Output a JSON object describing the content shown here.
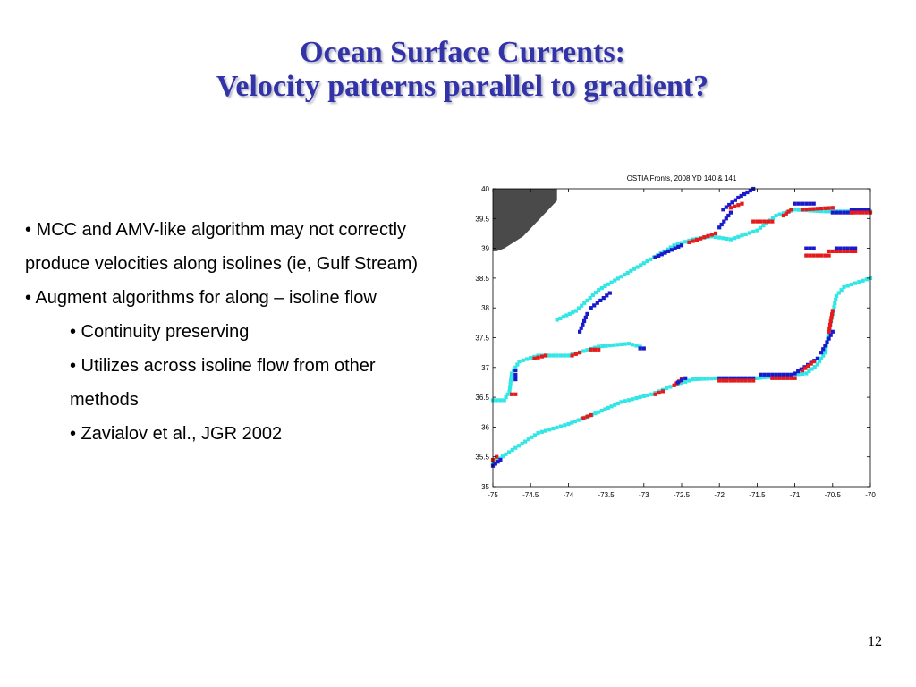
{
  "slide": {
    "title_line1": "Ocean Surface Currents:",
    "title_line2": "Velocity patterns parallel to gradient?",
    "bullets": [
      {
        "text": "• MCC and AMV-like algorithm may not correctly produce velocities along isolines (ie, Gulf Stream)",
        "level": 1
      },
      {
        "text": "• Augment algorithms for along – isoline flow",
        "level": 1
      },
      {
        "text": "• Continuity preserving",
        "level": 2
      },
      {
        "text": "• Utilizes across isoline flow from other methods",
        "level": 2
      },
      {
        "text": "• Zavialov et al., JGR 2002",
        "level": 2
      }
    ],
    "page_number": "12"
  },
  "colors": {
    "title": "#3333a8",
    "land": "#4a4a4a",
    "front_cyan": "#33e6e6",
    "front_blue": "#1a1acc",
    "front_red": "#e61a1a"
  },
  "chart_data": {
    "type": "scatter",
    "title": "OSTIA Fronts, 2008 YD 140 & 141",
    "xlabel": "",
    "ylabel": "",
    "xlim": [
      -75,
      -70
    ],
    "ylim": [
      35,
      40
    ],
    "x_ticks": [
      "-75",
      "-74.5",
      "-74",
      "-73.5",
      "-73",
      "-72.5",
      "-72",
      "-71.5",
      "-71",
      "-70.5",
      "-70"
    ],
    "y_ticks": [
      "35",
      "35.5",
      "36",
      "36.5",
      "37",
      "37.5",
      "38",
      "38.5",
      "39",
      "39.5",
      "40"
    ],
    "grid": false,
    "land_outline": [
      [
        -75,
        40
      ],
      [
        -74.15,
        40
      ],
      [
        -74.15,
        39.8
      ],
      [
        -74.3,
        39.6
      ],
      [
        -74.45,
        39.4
      ],
      [
        -74.6,
        39.2
      ],
      [
        -74.85,
        39
      ],
      [
        -74.95,
        38.95
      ],
      [
        -75,
        38.95
      ]
    ],
    "fronts": [
      {
        "color": "cyan",
        "points": [
          [
            -74.15,
            37.8
          ],
          [
            -73.9,
            37.95
          ],
          [
            -73.6,
            38.3
          ],
          [
            -73.0,
            38.75
          ],
          [
            -72.6,
            39.05
          ],
          [
            -72.35,
            39.15
          ],
          [
            -72.1,
            39.2
          ],
          [
            -71.85,
            39.15
          ],
          [
            -71.5,
            39.3
          ],
          [
            -71.25,
            39.55
          ],
          [
            -71.0,
            39.65
          ],
          [
            -70.6,
            39.62
          ],
          [
            -70.3,
            39.62
          ],
          [
            -70.0,
            39.62
          ]
        ]
      },
      {
        "color": "blue",
        "points": [
          [
            -73.85,
            37.6
          ],
          [
            -73.75,
            37.9
          ]
        ]
      },
      {
        "color": "blue",
        "points": [
          [
            -73.7,
            38.0
          ],
          [
            -73.45,
            38.25
          ]
        ]
      },
      {
        "color": "blue",
        "points": [
          [
            -72.85,
            38.85
          ],
          [
            -72.5,
            39.05
          ]
        ]
      },
      {
        "color": "red",
        "points": [
          [
            -72.4,
            39.1
          ],
          [
            -72.05,
            39.25
          ]
        ]
      },
      {
        "color": "blue",
        "points": [
          [
            -72.0,
            39.35
          ],
          [
            -71.85,
            39.6
          ]
        ]
      },
      {
        "color": "blue",
        "points": [
          [
            -71.95,
            39.65
          ],
          [
            -71.75,
            39.85
          ],
          [
            -71.55,
            40.0
          ]
        ]
      },
      {
        "color": "red",
        "points": [
          [
            -71.85,
            39.68
          ],
          [
            -71.7,
            39.75
          ]
        ]
      },
      {
        "color": "red",
        "points": [
          [
            -71.55,
            39.45
          ],
          [
            -71.3,
            39.45
          ]
        ]
      },
      {
        "color": "red",
        "points": [
          [
            -71.15,
            39.55
          ],
          [
            -71.05,
            39.65
          ]
        ]
      },
      {
        "color": "blue",
        "points": [
          [
            -71.0,
            39.75
          ],
          [
            -70.75,
            39.75
          ]
        ]
      },
      {
        "color": "red",
        "points": [
          [
            -70.9,
            39.65
          ],
          [
            -70.5,
            39.68
          ]
        ]
      },
      {
        "color": "blue",
        "points": [
          [
            -70.5,
            39.6
          ],
          [
            -70.25,
            39.6
          ]
        ]
      },
      {
        "color": "blue",
        "points": [
          [
            -70.25,
            39.65
          ],
          [
            -70.02,
            39.65
          ]
        ]
      },
      {
        "color": "red",
        "points": [
          [
            -70.25,
            39.6
          ],
          [
            -70.0,
            39.6
          ]
        ]
      },
      {
        "color": "blue",
        "points": [
          [
            -70.85,
            39.0
          ],
          [
            -70.75,
            39.0
          ]
        ]
      },
      {
        "color": "red",
        "points": [
          [
            -70.85,
            38.88
          ],
          [
            -70.55,
            38.88
          ]
        ]
      },
      {
        "color": "red",
        "points": [
          [
            -70.55,
            38.95
          ],
          [
            -70.2,
            38.95
          ]
        ]
      },
      {
        "color": "blue",
        "points": [
          [
            -70.45,
            39.0
          ],
          [
            -70.2,
            39.0
          ]
        ]
      },
      {
        "color": "cyan",
        "points": [
          [
            -75.0,
            36.45
          ],
          [
            -74.85,
            36.45
          ],
          [
            -74.78,
            36.6
          ],
          [
            -74.75,
            36.9
          ],
          [
            -74.65,
            37.1
          ],
          [
            -74.4,
            37.2
          ],
          [
            -74.0,
            37.2
          ],
          [
            -73.6,
            37.35
          ],
          [
            -73.2,
            37.4
          ],
          [
            -73.05,
            37.35
          ]
        ]
      },
      {
        "color": "blue",
        "points": [
          [
            -74.7,
            36.8
          ],
          [
            -74.7,
            36.95
          ]
        ]
      },
      {
        "color": "red",
        "points": [
          [
            -74.45,
            37.15
          ],
          [
            -74.3,
            37.2
          ]
        ]
      },
      {
        "color": "red",
        "points": [
          [
            -73.95,
            37.2
          ],
          [
            -73.85,
            37.25
          ]
        ]
      },
      {
        "color": "red",
        "points": [
          [
            -74.75,
            36.55
          ],
          [
            -74.7,
            36.55
          ]
        ]
      },
      {
        "color": "red",
        "points": [
          [
            -73.7,
            37.3
          ],
          [
            -73.6,
            37.3
          ]
        ]
      },
      {
        "color": "blue",
        "points": [
          [
            -73.05,
            37.32
          ],
          [
            -73.0,
            37.32
          ]
        ]
      },
      {
        "color": "cyan",
        "points": [
          [
            -75.0,
            35.4
          ],
          [
            -74.7,
            35.65
          ],
          [
            -74.4,
            35.9
          ],
          [
            -74.0,
            36.05
          ],
          [
            -73.6,
            36.25
          ],
          [
            -73.3,
            36.42
          ],
          [
            -72.9,
            36.55
          ],
          [
            -72.6,
            36.7
          ],
          [
            -72.35,
            36.8
          ],
          [
            -72.0,
            36.82
          ],
          [
            -71.5,
            36.82
          ],
          [
            -71.0,
            36.88
          ],
          [
            -70.85,
            36.9
          ],
          [
            -70.7,
            37.05
          ],
          [
            -70.6,
            37.25
          ],
          [
            -70.55,
            37.6
          ],
          [
            -70.5,
            37.9
          ],
          [
            -70.45,
            38.2
          ],
          [
            -70.35,
            38.35
          ],
          [
            -70.0,
            38.5
          ]
        ]
      },
      {
        "color": "blue",
        "points": [
          [
            -75.0,
            35.35
          ],
          [
            -74.9,
            35.45
          ]
        ]
      },
      {
        "color": "red",
        "points": [
          [
            -75.0,
            35.45
          ],
          [
            -74.95,
            35.5
          ]
        ]
      },
      {
        "color": "red",
        "points": [
          [
            -73.8,
            36.15
          ],
          [
            -73.7,
            36.2
          ]
        ]
      },
      {
        "color": "red",
        "points": [
          [
            -72.85,
            36.55
          ],
          [
            -72.75,
            36.6
          ]
        ]
      },
      {
        "color": "red",
        "points": [
          [
            -72.6,
            36.7
          ],
          [
            -72.5,
            36.8
          ]
        ]
      },
      {
        "color": "blue",
        "points": [
          [
            -72.55,
            36.75
          ],
          [
            -72.45,
            36.82
          ]
        ]
      },
      {
        "color": "blue",
        "points": [
          [
            -72.0,
            36.82
          ],
          [
            -71.55,
            36.82
          ]
        ]
      },
      {
        "color": "red",
        "points": [
          [
            -72.0,
            36.78
          ],
          [
            -71.55,
            36.78
          ]
        ]
      },
      {
        "color": "blue",
        "points": [
          [
            -71.45,
            36.88
          ],
          [
            -71.05,
            36.88
          ]
        ]
      },
      {
        "color": "red",
        "points": [
          [
            -71.3,
            36.82
          ],
          [
            -71.0,
            36.82
          ]
        ]
      },
      {
        "color": "blue",
        "points": [
          [
            -71.0,
            36.9
          ],
          [
            -70.7,
            37.15
          ]
        ]
      },
      {
        "color": "red",
        "points": [
          [
            -70.9,
            36.95
          ],
          [
            -70.75,
            37.1
          ]
        ]
      },
      {
        "color": "blue",
        "points": [
          [
            -70.65,
            37.25
          ],
          [
            -70.5,
            37.6
          ]
        ]
      },
      {
        "color": "red",
        "points": [
          [
            -70.55,
            37.6
          ],
          [
            -70.5,
            37.95
          ]
        ]
      }
    ]
  }
}
